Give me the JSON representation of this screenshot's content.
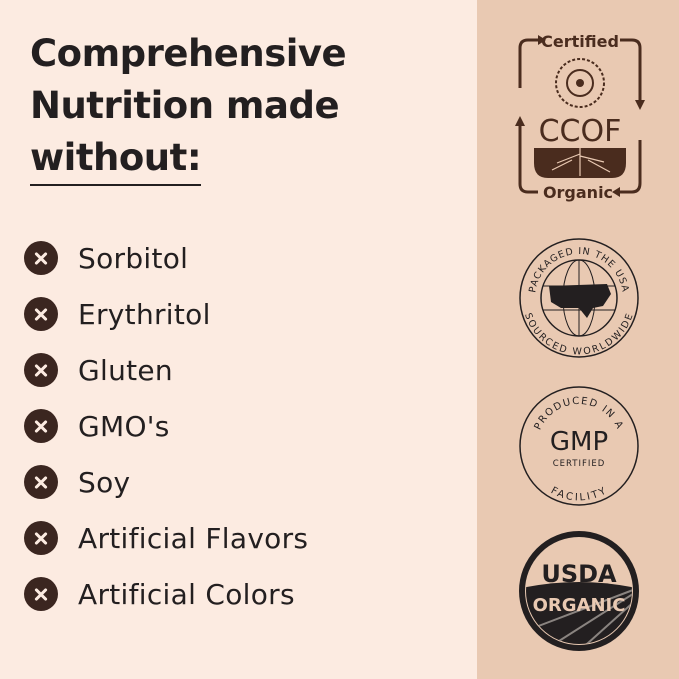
{
  "headline": {
    "line1": "Comprehensive",
    "line2": "Nutrition made",
    "line3": "without:"
  },
  "items": [
    {
      "label": "Sorbitol"
    },
    {
      "label": "Erythritol"
    },
    {
      "label": "Gluten"
    },
    {
      "label": "GMO's"
    },
    {
      "label": "Soy"
    },
    {
      "label": "Artificial Flavors"
    },
    {
      "label": "Artificial Colors"
    }
  ],
  "badges": {
    "ccof": {
      "top": "Certified",
      "middle": "CCOF",
      "bottom": "Organic"
    },
    "usa": {
      "top": "PACKAGED IN THE USA",
      "bottom": "SOURCED WORLDWIDE"
    },
    "gmp": {
      "top": "PRODUCED IN A",
      "middle": "GMP",
      "sub": "CERTIFIED",
      "bottom": "FACILITY"
    },
    "usda": {
      "top": "USDA",
      "bottom": "ORGANIC"
    }
  },
  "colors": {
    "background": "#fcebe1",
    "panel": "#e9c9b2",
    "text": "#231f20",
    "icon": "#3b2620"
  },
  "icons": {
    "list_marker": "x-circle-icon"
  }
}
